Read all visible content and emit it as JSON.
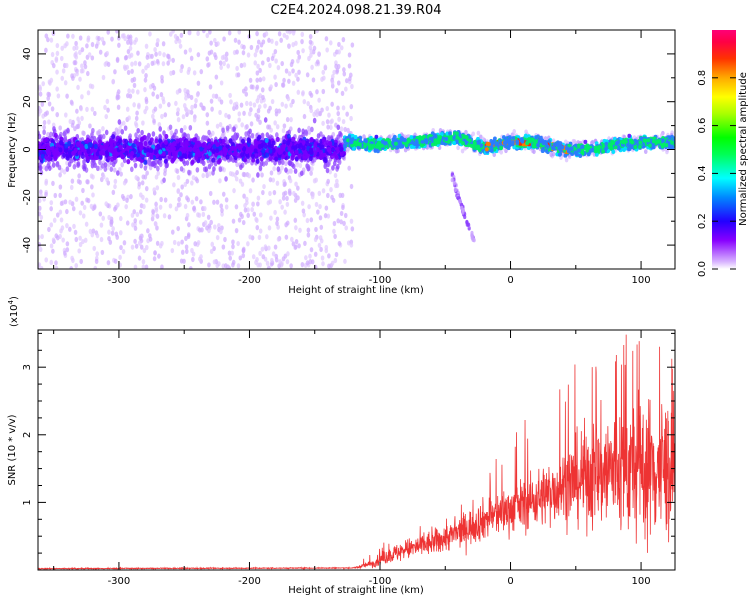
{
  "title": "C2E4.2024.098.21.39.R04",
  "chart_data": [
    {
      "type": "heatmap",
      "title": "C2E4.2024.098.21.39.R04",
      "xlabel": "Height of straight line (km)",
      "ylabel": "Frequency (Hz)",
      "xlim": [
        -362,
        126
      ],
      "ylim": [
        -50,
        50
      ],
      "xticks": [
        -300,
        -200,
        -100,
        0,
        100
      ],
      "xtick_labels": [
        "-300",
        "-200",
        "-100",
        "0",
        "100"
      ],
      "yticks": [
        -40,
        -20,
        0,
        20,
        40
      ],
      "ytick_labels": [
        "-40",
        "-20",
        "0",
        "20",
        "40"
      ],
      "colorbar": {
        "label": "Normalized spectral amplitude",
        "range": [
          0.0,
          1.0
        ],
        "ticks": [
          0.0,
          0.2,
          0.4,
          0.6,
          0.8
        ],
        "tick_labels": [
          "0.0",
          "0.2",
          "0.4",
          "0.6",
          "0.8"
        ],
        "colors": [
          "#ffffff",
          "#cc99ff",
          "#8800ff",
          "#0000ff",
          "#00ffff",
          "#00ff00",
          "#ffff00",
          "#ff8800",
          "#ff0000",
          "#ff0077"
        ]
      },
      "features": {
        "noise_region_x": [
          -362,
          -127
        ],
        "noise_band_center_hz": 0,
        "noise_band_halfwidth_hz": 10,
        "signal_region_x": [
          -127,
          126
        ],
        "signal_center_hz": [
          [
            -125,
            3
          ],
          [
            -100,
            2
          ],
          [
            -60,
            4
          ],
          [
            -40,
            5
          ],
          [
            -20,
            1
          ],
          [
            0,
            3
          ],
          [
            20,
            3
          ],
          [
            40,
            0
          ],
          [
            60,
            0
          ],
          [
            80,
            2
          ],
          [
            100,
            3
          ],
          [
            126,
            3
          ]
        ],
        "signal_halfwidth_hz": 4,
        "peak_amplitude_range_x": [
          -20,
          45
        ],
        "descending_trail": [
          [
            -45,
            -10
          ],
          [
            -40,
            -20
          ],
          [
            -35,
            -28
          ],
          [
            -28,
            -38
          ]
        ]
      }
    },
    {
      "type": "line",
      "xlabel": "Height of straight line (km)",
      "ylabel": "SNR (10 * v/v)",
      "y_multiplier_label": "(x10",
      "y_multiplier_exp": "4",
      "xlim": [
        -362,
        126
      ],
      "ylim": [
        0,
        3.55
      ],
      "xticks": [
        -300,
        -200,
        -100,
        0,
        100
      ],
      "xtick_labels": [
        "-300",
        "-200",
        "-100",
        "0",
        "100"
      ],
      "yticks": [
        1,
        2,
        3
      ],
      "ytick_labels": [
        "1",
        "2",
        "3"
      ],
      "color": "#ee3333",
      "envelope": {
        "x": [
          -362,
          -120,
          -105,
          -95,
          -80,
          -60,
          -40,
          -20,
          0,
          20,
          40,
          60,
          80,
          100,
          126
        ],
        "mean": [
          0.02,
          0.03,
          0.1,
          0.2,
          0.3,
          0.4,
          0.55,
          0.75,
          0.9,
          1.05,
          1.25,
          1.4,
          1.5,
          1.5,
          1.5
        ],
        "spread": [
          0.01,
          0.01,
          0.08,
          0.15,
          0.2,
          0.25,
          0.3,
          0.4,
          0.45,
          0.55,
          0.7,
          1.0,
          1.3,
          1.4,
          1.4
        ],
        "max": [
          0.03,
          0.04,
          0.3,
          0.45,
          0.55,
          0.75,
          0.95,
          1.5,
          1.95,
          2.5,
          2.9,
          3.45,
          3.5,
          3.55,
          3.1
        ]
      }
    }
  ]
}
